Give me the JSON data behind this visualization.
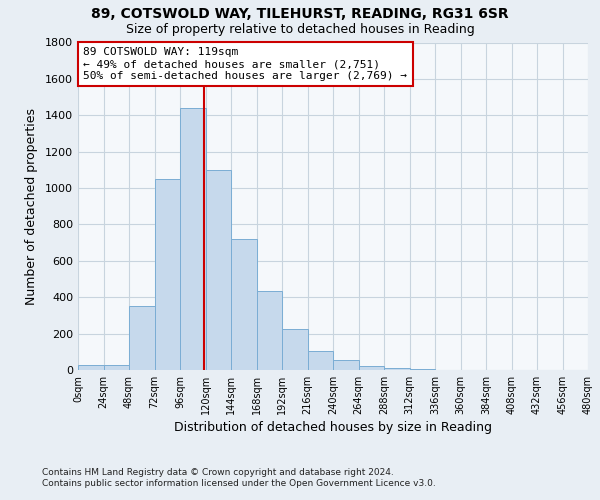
{
  "title1": "89, COTSWOLD WAY, TILEHURST, READING, RG31 6SR",
  "title2": "Size of property relative to detached houses in Reading",
  "xlabel": "Distribution of detached houses by size in Reading",
  "ylabel": "Number of detached properties",
  "footer1": "Contains HM Land Registry data © Crown copyright and database right 2024.",
  "footer2": "Contains public sector information licensed under the Open Government Licence v3.0.",
  "bin_edges": [
    0,
    24,
    48,
    72,
    96,
    120,
    144,
    168,
    192,
    216,
    240,
    264,
    288,
    312,
    336,
    360,
    384,
    408,
    432,
    456,
    480
  ],
  "bin_values": [
    25,
    30,
    350,
    1050,
    1440,
    1100,
    720,
    435,
    225,
    105,
    55,
    20,
    10,
    5,
    2,
    1,
    1,
    0,
    0,
    0
  ],
  "bar_color": "#c6d9ec",
  "bar_edge_color": "#7aadd4",
  "property_size": 119,
  "vline_color": "#cc0000",
  "annotation_line1": "89 COTSWOLD WAY: 119sqm",
  "annotation_line2": "← 49% of detached houses are smaller (2,751)",
  "annotation_line3": "50% of semi-detached houses are larger (2,769) →",
  "annotation_box_edge": "#cc0000",
  "xlim": [
    0,
    480
  ],
  "ylim": [
    0,
    1800
  ],
  "yticks": [
    0,
    200,
    400,
    600,
    800,
    1000,
    1200,
    1400,
    1600,
    1800
  ],
  "xtick_labels": [
    "0sqm",
    "24sqm",
    "48sqm",
    "72sqm",
    "96sqm",
    "120sqm",
    "144sqm",
    "168sqm",
    "192sqm",
    "216sqm",
    "240sqm",
    "264sqm",
    "288sqm",
    "312sqm",
    "336sqm",
    "360sqm",
    "384sqm",
    "408sqm",
    "432sqm",
    "456sqm",
    "480sqm"
  ],
  "background_color": "#e8eef4",
  "plot_bg_color": "#f5f8fb",
  "grid_color": "#c8d4de"
}
